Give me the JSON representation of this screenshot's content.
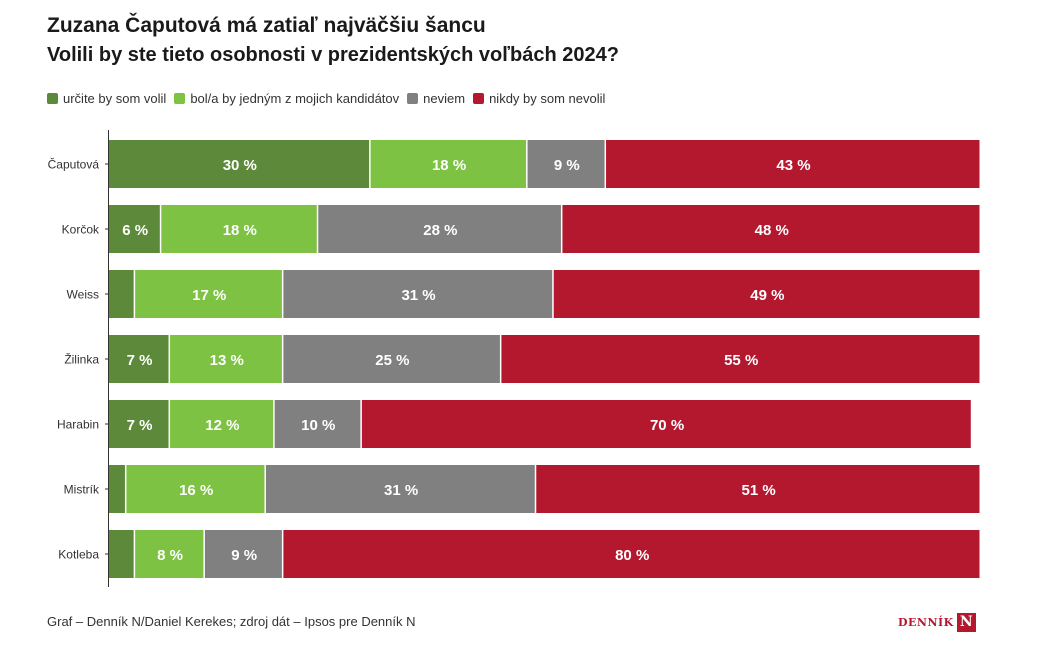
{
  "title": "Zuzana Čaputová má zatiaľ najväčšiu šancu",
  "subtitle": "Volili by ste tieto osobnosti v prezidentských voľbách 2024?",
  "legend": [
    {
      "label": "určite by som volil",
      "color": "#5c8a3a"
    },
    {
      "label": "bol/a by jedným z mojich kandidátov",
      "color": "#7dc242"
    },
    {
      "label": "neviem",
      "color": "#808080"
    },
    {
      "label": "nikdy by som nevolil",
      "color": "#b3182f"
    }
  ],
  "footer": "Graf – Denník N/Daniel Kerekes; zdroj dát – Ipsos pre Denník N",
  "logo": {
    "text": "DENNÍK",
    "mark": "N"
  },
  "chart_data": {
    "type": "bar",
    "orientation": "horizontal",
    "stacked": true,
    "normalized_to": 100,
    "value_suffix": " %",
    "categories": [
      "Čaputová",
      "Korčok",
      "Weiss",
      "Žilinka",
      "Harabin",
      "Mistrík",
      "Kotleba"
    ],
    "series": [
      {
        "name": "určite by som volil",
        "color": "#5c8a3a",
        "values": [
          30,
          6,
          3,
          7,
          7,
          2,
          3
        ],
        "labels": [
          "30 %",
          "6 %",
          "",
          "7 %",
          "7 %",
          "",
          ""
        ]
      },
      {
        "name": "bol/a by jedným z mojich kandidátov",
        "color": "#7dc242",
        "values": [
          18,
          18,
          17,
          13,
          12,
          16,
          8
        ],
        "labels": [
          "18 %",
          "18 %",
          "17 %",
          "13 %",
          "12 %",
          "16 %",
          "8 %"
        ]
      },
      {
        "name": "neviem",
        "color": "#808080",
        "values": [
          9,
          28,
          31,
          25,
          10,
          31,
          9
        ],
        "labels": [
          "9 %",
          "28 %",
          "31 %",
          "25 %",
          "10 %",
          "31 %",
          "9 %"
        ]
      },
      {
        "name": "nikdy by som nevolil",
        "color": "#b3182f",
        "values": [
          43,
          48,
          49,
          55,
          70,
          51,
          80
        ],
        "labels": [
          "43 %",
          "48 %",
          "49 %",
          "55 %",
          "70 %",
          "51 %",
          "80 %"
        ]
      }
    ],
    "grid": false,
    "legend_position": "top-left"
  }
}
